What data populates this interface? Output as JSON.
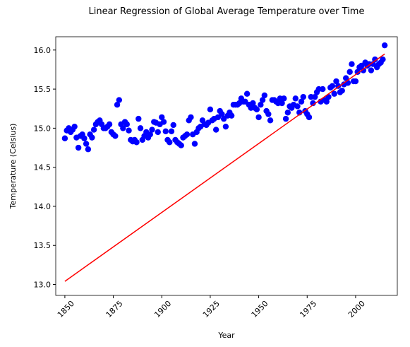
{
  "chart_data": {
    "type": "scatter",
    "title": "Linear Regression of Global Average Temperature over Time",
    "x_label": "Year",
    "y_label": "Temperature (Celsius)",
    "xlim": [
      1845.3,
      2021.5
    ],
    "ylim": [
      12.86,
      16.17
    ],
    "xticks": [
      1850,
      1875,
      1900,
      1925,
      1950,
      1975,
      2000
    ],
    "yticks": [
      {
        "value": 13.0,
        "label": "13.0"
      },
      13.5,
      {
        "value": 14.0,
        "label": "14.0"
      },
      14.5,
      {
        "value": 15.0,
        "label": "15.0"
      },
      15.5,
      {
        "value": 16.0,
        "label": "16.0"
      }
    ],
    "series": [
      {
        "type": "scatter",
        "color": "#0000ff",
        "x": [
          1850,
          1851,
          1852,
          1853,
          1854,
          1855,
          1856,
          1857,
          1858,
          1859,
          1860,
          1861,
          1862,
          1863,
          1864,
          1865,
          1866,
          1867,
          1868,
          1869,
          1870,
          1871,
          1872,
          1873,
          1874,
          1875,
          1876,
          1877,
          1878,
          1879,
          1880,
          1881,
          1882,
          1883,
          1884,
          1885,
          1886,
          1887,
          1888,
          1889,
          1890,
          1891,
          1892,
          1893,
          1894,
          1895,
          1896,
          1897,
          1898,
          1899,
          1900,
          1901,
          1902,
          1903,
          1904,
          1905,
          1906,
          1907,
          1908,
          1909,
          1910,
          1911,
          1912,
          1913,
          1914,
          1915,
          1916,
          1917,
          1918,
          1919,
          1920,
          1921,
          1922,
          1923,
          1924,
          1925,
          1926,
          1927,
          1928,
          1929,
          1930,
          1931,
          1932,
          1933,
          1934,
          1935,
          1936,
          1937,
          1938,
          1939,
          1940,
          1941,
          1942,
          1943,
          1944,
          1945,
          1946,
          1947,
          1948,
          1949,
          1950,
          1951,
          1952,
          1953,
          1954,
          1955,
          1956,
          1957,
          1958,
          1959,
          1960,
          1961,
          1962,
          1963,
          1964,
          1965,
          1966,
          1967,
          1968,
          1969,
          1970,
          1971,
          1972,
          1973,
          1974,
          1975,
          1976,
          1977,
          1978,
          1979,
          1980,
          1981,
          1982,
          1983,
          1984,
          1985,
          1986,
          1987,
          1988,
          1989,
          1990,
          1991,
          1992,
          1993,
          1994,
          1995,
          1996,
          1997,
          1998,
          1999,
          2000,
          2001,
          2002,
          2003,
          2004,
          2005,
          2006,
          2007,
          2008,
          2009,
          2010,
          2011,
          2012,
          2013,
          2014,
          2015
        ],
        "values": [
          14.87,
          14.97,
          15.0,
          14.95,
          14.98,
          15.02,
          14.88,
          14.75,
          14.9,
          14.92,
          14.87,
          14.8,
          14.73,
          14.92,
          14.88,
          14.98,
          15.05,
          15.08,
          15.1,
          15.05,
          15.0,
          15.0,
          15.02,
          15.05,
          14.95,
          14.92,
          14.9,
          15.3,
          15.36,
          15.05,
          15.0,
          15.08,
          15.05,
          14.97,
          14.85,
          14.83,
          14.85,
          14.82,
          15.12,
          15.0,
          14.85,
          14.9,
          14.95,
          14.88,
          14.92,
          14.98,
          15.08,
          15.07,
          14.95,
          15.05,
          15.14,
          15.08,
          14.96,
          14.85,
          14.82,
          14.96,
          15.04,
          14.85,
          14.82,
          14.8,
          14.78,
          14.88,
          14.9,
          14.92,
          15.1,
          15.14,
          14.92,
          14.8,
          14.95,
          15.0,
          15.02,
          15.1,
          15.05,
          15.04,
          15.07,
          15.24,
          15.1,
          15.12,
          14.98,
          15.14,
          15.22,
          15.18,
          15.12,
          15.02,
          15.16,
          15.2,
          15.16,
          15.3,
          15.3,
          15.3,
          15.32,
          15.38,
          15.34,
          15.34,
          15.44,
          15.3,
          15.26,
          15.32,
          15.26,
          15.24,
          15.14,
          15.3,
          15.36,
          15.42,
          15.22,
          15.18,
          15.1,
          15.36,
          15.36,
          15.34,
          15.32,
          15.38,
          15.32,
          15.38,
          15.12,
          15.2,
          15.28,
          15.26,
          15.3,
          15.38,
          15.28,
          15.2,
          15.34,
          15.4,
          15.22,
          15.18,
          15.14,
          15.4,
          15.32,
          15.4,
          15.46,
          15.5,
          15.34,
          15.5,
          15.36,
          15.34,
          15.4,
          15.52,
          15.54,
          15.44,
          15.6,
          15.54,
          15.46,
          15.48,
          15.56,
          15.64,
          15.58,
          15.72,
          15.82,
          15.6,
          15.6,
          15.72,
          15.78,
          15.8,
          15.74,
          15.84,
          15.8,
          15.82,
          15.74,
          15.82,
          15.88,
          15.78,
          15.82,
          15.84,
          15.88,
          16.06
        ]
      },
      {
        "type": "line",
        "color": "#ff0000",
        "x": [
          1850,
          2015
        ],
        "values": [
          13.04,
          15.95
        ]
      }
    ]
  }
}
